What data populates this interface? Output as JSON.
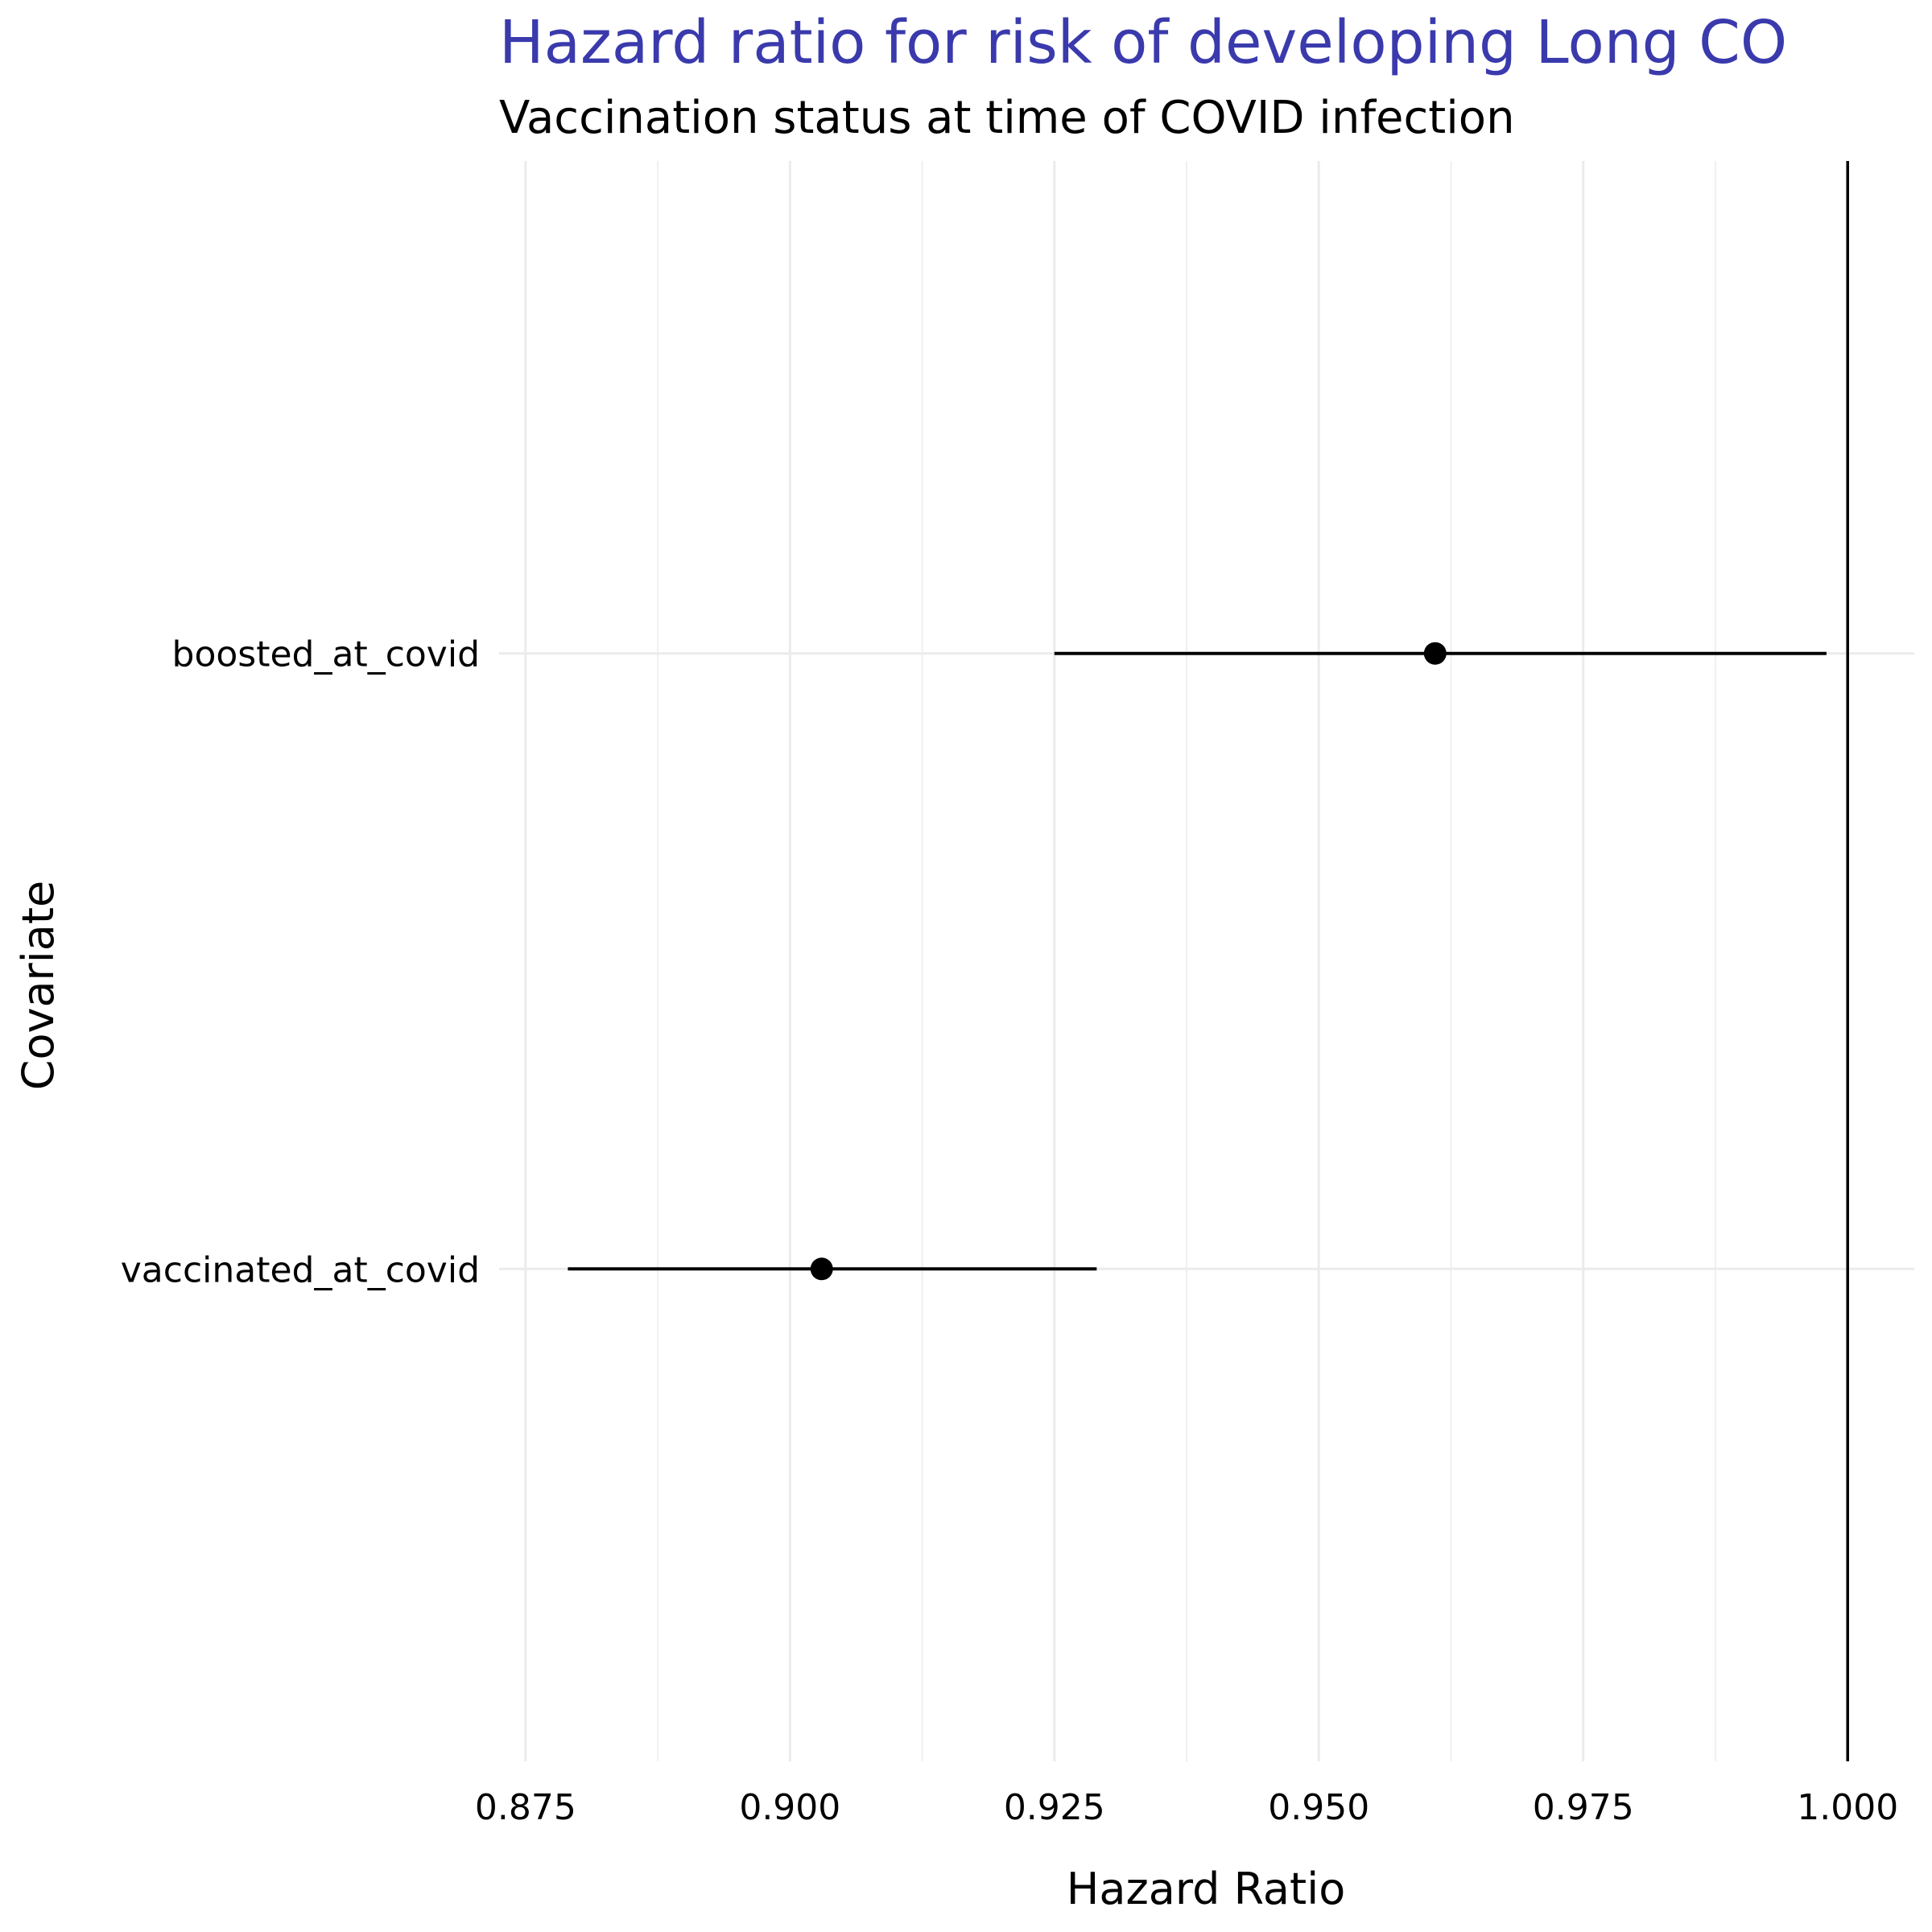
{
  "chart_data": {
    "type": "scatter",
    "subtype": "forest-plot",
    "title": "Hazard ratio for risk of developing Long COVID",
    "title_visible": "Hazard ratio for risk of developing Long CO",
    "subtitle": "Vaccination status at time of COVID infection",
    "xlabel": "Hazard Ratio",
    "ylabel": "Covariate",
    "xlim": [
      0.8725,
      1.0063
    ],
    "x_ticks": [
      0.875,
      0.9,
      0.925,
      0.95,
      0.975,
      1.0
    ],
    "x_tick_labels": [
      "0.875",
      "0.900",
      "0.925",
      "0.950",
      "0.975",
      "1.000"
    ],
    "categories": [
      "boosted_at_covid",
      "vaccinated_at_covid"
    ],
    "estimates": [
      0.961,
      0.903
    ],
    "lower": [
      0.925,
      0.879
    ],
    "upper": [
      0.998,
      0.929
    ],
    "reference_line": 1.0,
    "grid": true,
    "colors": {
      "title": "#3a3aad",
      "text": "#000000",
      "grid": "#ebebeb",
      "mark": "#000000"
    }
  }
}
